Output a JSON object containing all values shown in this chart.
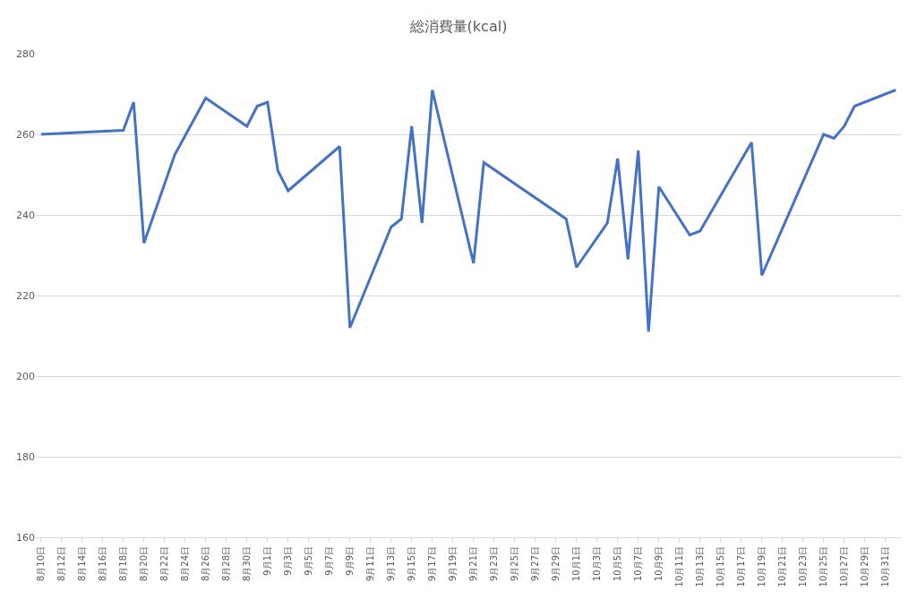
{
  "chart_data": {
    "type": "line",
    "title": "総消費量(kcal)",
    "x": [
      "--08-10",
      "--08-18",
      "--08-19",
      "--08-20",
      "--08-23",
      "--08-26",
      "--08-30",
      "--08-31",
      "--09-01",
      "--09-02",
      "--09-03",
      "--09-08",
      "--09-09",
      "--09-13",
      "--09-14",
      "--09-15",
      "--09-16",
      "--09-17",
      "--09-21",
      "--09-22",
      "--09-30",
      "--10-01",
      "--10-04",
      "--10-05",
      "--10-06",
      "--10-07",
      "--10-08",
      "--10-09",
      "--10-12",
      "--10-13",
      "--10-18",
      "--10-19",
      "--10-25",
      "--10-26",
      "--10-27",
      "--10-28",
      "--11-01"
    ],
    "series": [
      {
        "color": "#4472c4",
        "values": [
          260,
          261,
          268,
          233,
          255,
          269,
          262,
          267,
          268,
          251,
          246,
          257,
          212,
          237,
          239,
          262,
          238,
          271,
          228,
          253,
          239,
          227,
          238,
          254,
          229,
          256,
          211,
          247,
          235,
          236,
          258,
          225,
          260,
          259,
          262,
          267,
          271
        ]
      }
    ],
    "ylim": [
      160,
      280
    ],
    "yticks": [
      160,
      180,
      200,
      220,
      240,
      260,
      280
    ],
    "xlim": [
      "--08-09T12:00",
      "--11-01T12:00"
    ],
    "xticks": [
      {
        "value": "--08-10",
        "label": "8月10日"
      },
      {
        "value": "--08-12",
        "label": "8月12日"
      },
      {
        "value": "--08-14",
        "label": "8月14日"
      },
      {
        "value": "--08-16",
        "label": "8月16日"
      },
      {
        "value": "--08-18",
        "label": "8月18日"
      },
      {
        "value": "--08-20",
        "label": "8月20日"
      },
      {
        "value": "--08-22",
        "label": "8月22日"
      },
      {
        "value": "--08-24",
        "label": "8月24日"
      },
      {
        "value": "--08-26",
        "label": "8月26日"
      },
      {
        "value": "--08-28",
        "label": "8月28日"
      },
      {
        "value": "--08-30",
        "label": "8月30日"
      },
      {
        "value": "--09-01",
        "label": "9月1日"
      },
      {
        "value": "--09-03",
        "label": "9月3日"
      },
      {
        "value": "--09-05",
        "label": "9月5日"
      },
      {
        "value": "--09-07",
        "label": "9月7日"
      },
      {
        "value": "--09-09",
        "label": "9月9日"
      },
      {
        "value": "--09-11",
        "label": "9月11日"
      },
      {
        "value": "--09-13",
        "label": "9月13日"
      },
      {
        "value": "--09-15",
        "label": "9月15日"
      },
      {
        "value": "--09-17",
        "label": "9月17日"
      },
      {
        "value": "--09-19",
        "label": "9月19日"
      },
      {
        "value": "--09-21",
        "label": "9月21日"
      },
      {
        "value": "--09-23",
        "label": "9月23日"
      },
      {
        "value": "--09-25",
        "label": "9月25日"
      },
      {
        "value": "--09-27",
        "label": "9月27日"
      },
      {
        "value": "--09-29",
        "label": "9月29日"
      },
      {
        "value": "--10-01",
        "label": "10月1日"
      },
      {
        "value": "--10-03",
        "label": "10月3日"
      },
      {
        "value": "--10-05",
        "label": "10月5日"
      },
      {
        "value": "--10-07",
        "label": "10月7日"
      },
      {
        "value": "--10-09",
        "label": "10月9日"
      },
      {
        "value": "--10-11",
        "label": "10月11日"
      },
      {
        "value": "--10-13",
        "label": "10月13日"
      },
      {
        "value": "--10-15",
        "label": "10月15日"
      },
      {
        "value": "--10-17",
        "label": "10月17日"
      },
      {
        "value": "--10-19",
        "label": "10月19日"
      },
      {
        "value": "--10-21",
        "label": "10月21日"
      },
      {
        "value": "--10-23",
        "label": "10月23日"
      },
      {
        "value": "--10-25",
        "label": "10月25日"
      },
      {
        "value": "--10-27",
        "label": "10月27日"
      },
      {
        "value": "--10-29",
        "label": "10月29日"
      },
      {
        "value": "--10-31",
        "label": "10月31日"
      }
    ],
    "grid": "y",
    "marker": "none",
    "line_style": "solid"
  }
}
